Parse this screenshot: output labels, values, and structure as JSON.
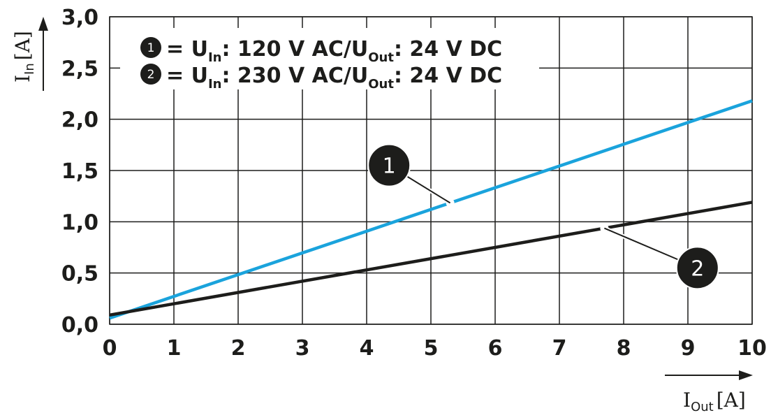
{
  "chart_data": {
    "type": "line",
    "x_ticks": [
      "0",
      "1",
      "2",
      "3",
      "4",
      "5",
      "6",
      "7",
      "8",
      "9",
      "10"
    ],
    "y_ticks": [
      "0,0",
      "0,5",
      "1,0",
      "1,5",
      "2,0",
      "2,5",
      "3,0"
    ],
    "xlim": [
      0,
      10
    ],
    "ylim": [
      0,
      3
    ],
    "grid": true,
    "xlabel": {
      "main": "I",
      "sub": "Out",
      "unit": "[A]"
    },
    "ylabel": {
      "main": "I",
      "sub": "In",
      "unit": "[A]"
    },
    "legend": {
      "position": "top-left",
      "entries": [
        {
          "num": "1",
          "eq": "= U",
          "sub1": "In",
          "mid": ": 120 V AC/U",
          "sub2": "Out",
          "tail": ": 24 V DC"
        },
        {
          "num": "2",
          "eq": "= U",
          "sub1": "In",
          "mid": ": 230 V AC/U",
          "sub2": "Out",
          "tail": ": 24 V DC"
        }
      ]
    },
    "series": [
      {
        "label": "1",
        "color": "#1aa3dc",
        "x": [
          0,
          10
        ],
        "y": [
          0.06,
          2.18
        ]
      },
      {
        "label": "2",
        "color": "#1d1d1b",
        "x": [
          0,
          10
        ],
        "y": [
          0.09,
          1.19
        ]
      }
    ],
    "annotations": [
      {
        "label": "1",
        "series": 0,
        "at_x": 5.3,
        "badge_x": 4.35,
        "badge_y": 1.55
      },
      {
        "label": "2",
        "series": 1,
        "at_x": 7.7,
        "badge_x": 9.15,
        "badge_y": 0.55
      }
    ]
  }
}
